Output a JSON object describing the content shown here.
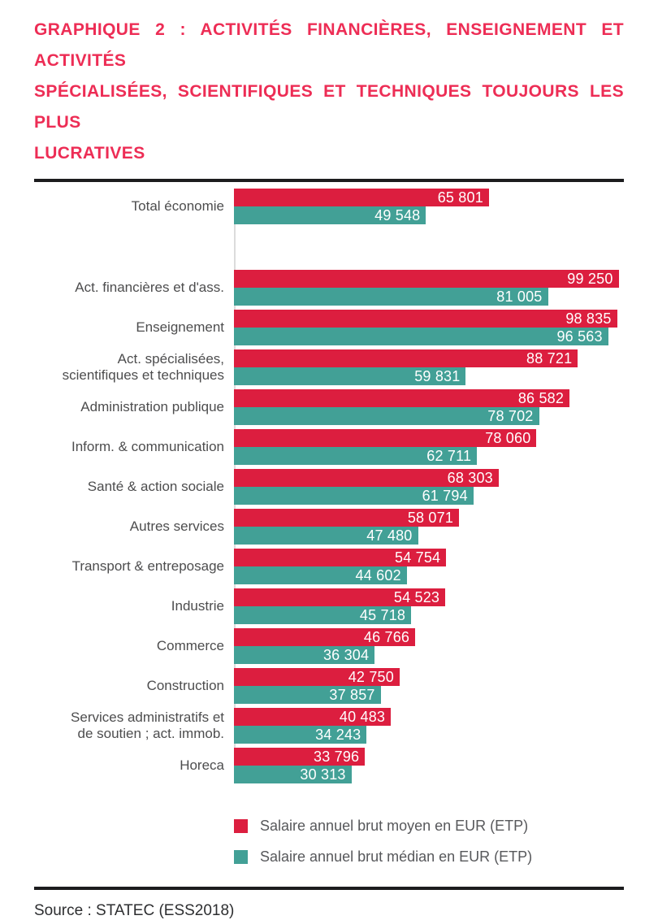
{
  "header": {
    "title_lines": [
      "GRAPHIQUE 2 : ACTIVITÉS FINANCIÈRES, ENSEIGNEMENT ET ACTIVITÉS",
      "SPÉCIALISÉES, SCIENTIFIQUES ET TECHNIQUES TOUJOURS LES PLUS",
      "LUCRATIVES"
    ],
    "title_color": "#ed2d55"
  },
  "chart_data": {
    "type": "bar",
    "orientation": "horizontal",
    "title": "GRAPHIQUE 2 : Activités financières, enseignement et activités spécialisées, scientifiques et techniques toujours les plus lucratives",
    "categories": [
      "Total économie",
      "Act. financières et d'ass.",
      "Enseignement",
      "Act. spécialisées,\nscientifiques et techniques",
      "Administration publique",
      "Inform. & communication",
      "Santé & action sociale",
      "Autres services",
      "Transport & entreposage",
      "Industrie",
      "Commerce",
      "Construction",
      "Services administratifs et\nde soutien ; act. immob.",
      "Horeca"
    ],
    "series": [
      {
        "name": "Salaire annuel brut moyen en EUR (ETP)",
        "color": "#dc1e3f",
        "values": [
          65801,
          99250,
          98835,
          88721,
          86582,
          78060,
          68303,
          58071,
          54754,
          54523,
          46766,
          42750,
          40483,
          33796
        ]
      },
      {
        "name": "Salaire annuel brut médian en EUR (ETP)",
        "color": "#42a096",
        "values": [
          49548,
          81005,
          96563,
          59831,
          78702,
          62711,
          61794,
          47480,
          44602,
          45718,
          36304,
          37857,
          34243,
          30313
        ]
      }
    ],
    "xlim": [
      0,
      100600
    ],
    "xlabel": "",
    "ylabel": "",
    "grid": false,
    "legend_position": "bottom",
    "value_labels": "inside-end, white, thousands separated by space",
    "separator_after_index": 0
  },
  "footer": {
    "source": "Source : STATEC (ESS2018)"
  }
}
